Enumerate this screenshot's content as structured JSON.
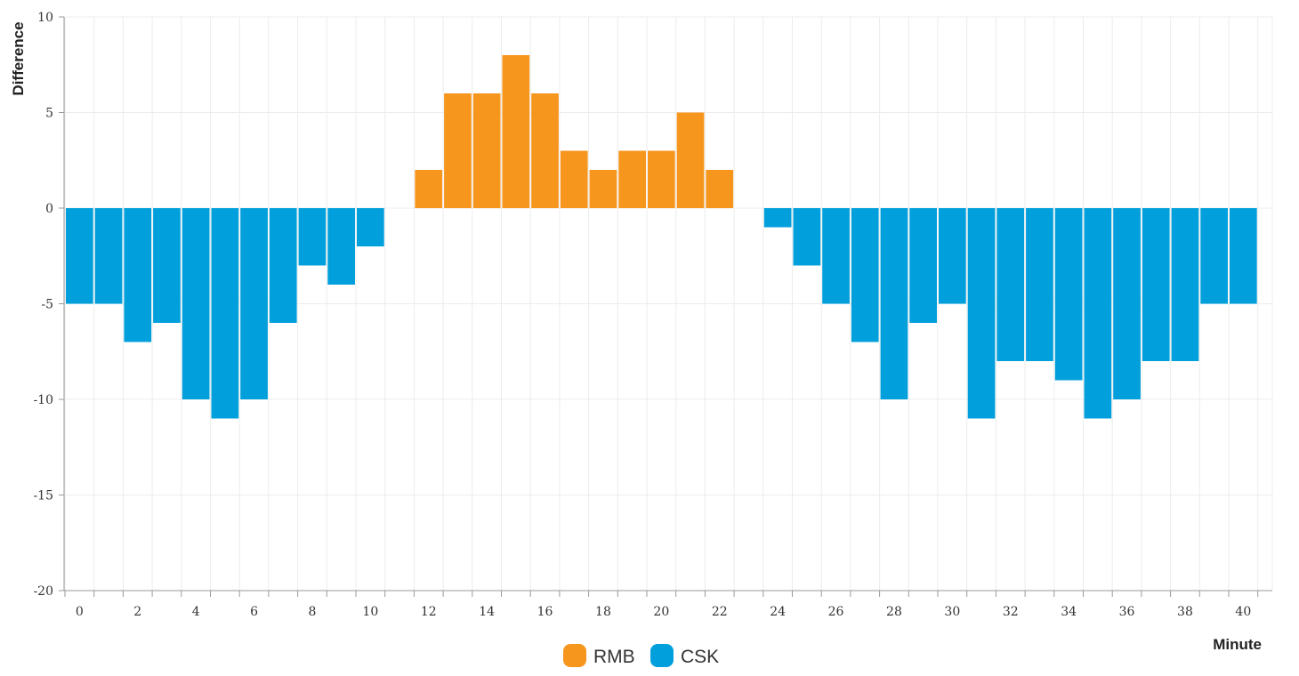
{
  "chart_data": {
    "type": "bar",
    "xlabel": "Minute",
    "ylabel": "Difference",
    "ylim": [
      -20,
      10
    ],
    "yticks": [
      10,
      5,
      0,
      -5,
      -10,
      -15,
      -20
    ],
    "xticks": [
      0,
      2,
      4,
      6,
      8,
      10,
      12,
      14,
      16,
      18,
      20,
      22,
      24,
      26,
      28,
      30,
      32,
      34,
      36,
      38,
      40
    ],
    "grid": true,
    "legend_position": "bottom-center",
    "x": [
      0,
      1,
      2,
      3,
      4,
      5,
      6,
      7,
      8,
      9,
      10,
      11,
      12,
      13,
      14,
      15,
      16,
      17,
      18,
      19,
      20,
      21,
      22,
      23,
      24,
      25,
      26,
      27,
      28,
      29,
      30,
      31,
      32,
      33,
      34,
      35,
      36,
      37,
      38,
      39,
      40
    ],
    "values": [
      -5,
      -5,
      -7,
      -6,
      -10,
      -11,
      -10,
      -6,
      -3,
      -4,
      -2,
      0,
      2,
      6,
      6,
      8,
      6,
      3,
      2,
      3,
      3,
      5,
      2,
      0,
      -1,
      -3,
      -5,
      -7,
      -10,
      -6,
      -5,
      -11,
      -8,
      -8,
      -9,
      -11,
      -10,
      -8,
      -8,
      -5,
      -5
    ],
    "series": [
      {
        "name": "RMB",
        "color": "#F7961D",
        "rule": "positive"
      },
      {
        "name": "CSK",
        "color": "#019FDB",
        "rule": "negative"
      }
    ]
  }
}
